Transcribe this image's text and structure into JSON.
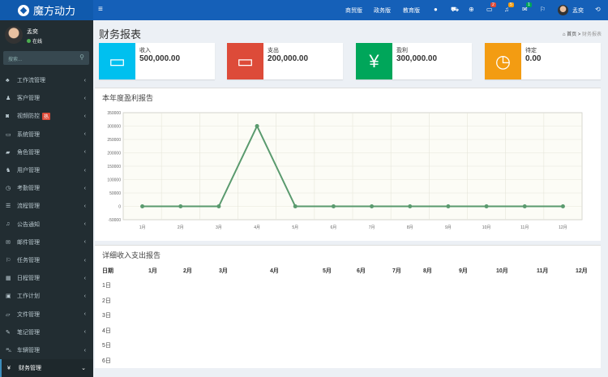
{
  "app": {
    "name": "魔方动力"
  },
  "topnav": {
    "links": [
      "商贸版",
      "政务版",
      "教育版"
    ],
    "badges": {
      "messages": "2",
      "notifications": "5",
      "tasks": "1"
    },
    "user": "孟奕"
  },
  "sidebar": {
    "user": {
      "name": "孟奕",
      "status": "在线"
    },
    "search_placeholder": "搜索...",
    "items": [
      {
        "label": "工作流管理",
        "icon": "sitemap-icon"
      },
      {
        "label": "客户管理",
        "icon": "user-icon"
      },
      {
        "label": "视频防控",
        "icon": "camera-icon",
        "badge": "热"
      },
      {
        "label": "系统管理",
        "icon": "desktop-icon"
      },
      {
        "label": "角色管理",
        "icon": "graduation-cap-icon"
      },
      {
        "label": "用户管理",
        "icon": "users-icon"
      },
      {
        "label": "考勤管理",
        "icon": "clock-icon"
      },
      {
        "label": "流程管理",
        "icon": "tasks-icon"
      },
      {
        "label": "公告通知",
        "icon": "bell-icon"
      },
      {
        "label": "邮件管理",
        "icon": "envelope-icon"
      },
      {
        "label": "任务管理",
        "icon": "flag-icon"
      },
      {
        "label": "日程管理",
        "icon": "calendar-icon"
      },
      {
        "label": "工作计划",
        "icon": "calendar-check-icon"
      },
      {
        "label": "文件管理",
        "icon": "folder-icon"
      },
      {
        "label": "笔记管理",
        "icon": "edit-icon"
      },
      {
        "label": "车辆管理",
        "icon": "car-icon"
      },
      {
        "label": "财务管理",
        "icon": "yen-icon",
        "active": true
      }
    ]
  },
  "page": {
    "title": "财务报表",
    "breadcrumb": [
      "首页",
      "财务报表"
    ]
  },
  "stats": [
    {
      "label": "收入",
      "value": "500,000.00",
      "color": "#00c0ef",
      "icon": "battery-icon"
    },
    {
      "label": "支出",
      "value": "200,000.00",
      "color": "#dd4b39",
      "icon": "battery-empty-icon"
    },
    {
      "label": "盈利",
      "value": "300,000.00",
      "color": "#00a65a",
      "icon": "yen-icon"
    },
    {
      "label": "待定",
      "value": "0.00",
      "color": "#f39c12",
      "icon": "clock-icon"
    }
  ],
  "chart_panel": {
    "title": "本年度盈利报告"
  },
  "chart_data": {
    "type": "line",
    "categories": [
      "1月",
      "2月",
      "3月",
      "4月",
      "5月",
      "6月",
      "7月",
      "8月",
      "9月",
      "10月",
      "11月",
      "12月"
    ],
    "values": [
      0,
      0,
      0,
      300000,
      0,
      0,
      0,
      0,
      0,
      0,
      0,
      0
    ],
    "ylim": [
      -50000,
      350000
    ],
    "yticks": [
      "350000",
      "300000",
      "250000",
      "200000",
      "150000",
      "100000",
      "50000",
      "0",
      "-50000"
    ],
    "grid": true,
    "color": "#5a9a6e"
  },
  "table_panel": {
    "title": "详细收入支出报告",
    "headers": [
      "日期",
      "1月",
      "2月",
      "3月",
      "4月",
      "5月",
      "6月",
      "7月",
      "8月",
      "9月",
      "10月",
      "11月",
      "12月"
    ],
    "rows": [
      "1日",
      "2日",
      "3日",
      "4日",
      "5日",
      "6日"
    ]
  }
}
